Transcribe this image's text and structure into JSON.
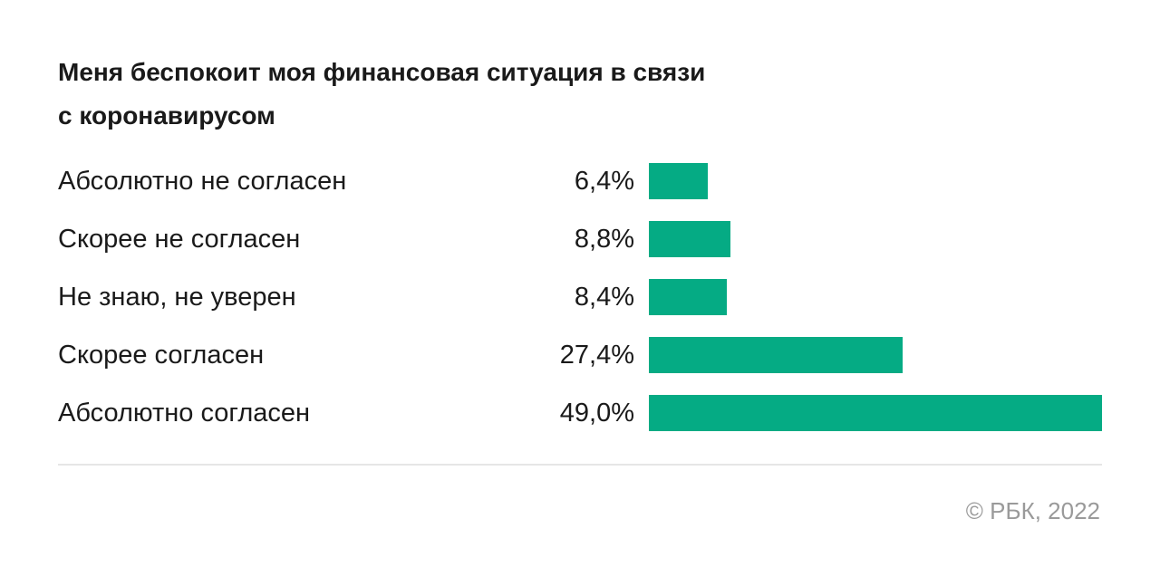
{
  "chart_data": {
    "type": "bar",
    "orientation": "horizontal",
    "title": "Меня беспокоит моя финансовая ситуация в связи с коронавирусом",
    "categories": [
      "Абсолютно не согласен",
      "Скорее не согласен",
      "Не знаю, не уверен",
      "Скорее согласен",
      "Абсолютно согласен"
    ],
    "values": [
      6.4,
      8.8,
      8.4,
      27.4,
      49.0
    ],
    "value_labels": [
      "6,4%",
      "8,8%",
      "8,4%",
      "27,4%",
      "49,0%"
    ],
    "color": "#05ab84",
    "xlim": [
      0,
      49
    ],
    "source": "© РБК, 2022"
  }
}
